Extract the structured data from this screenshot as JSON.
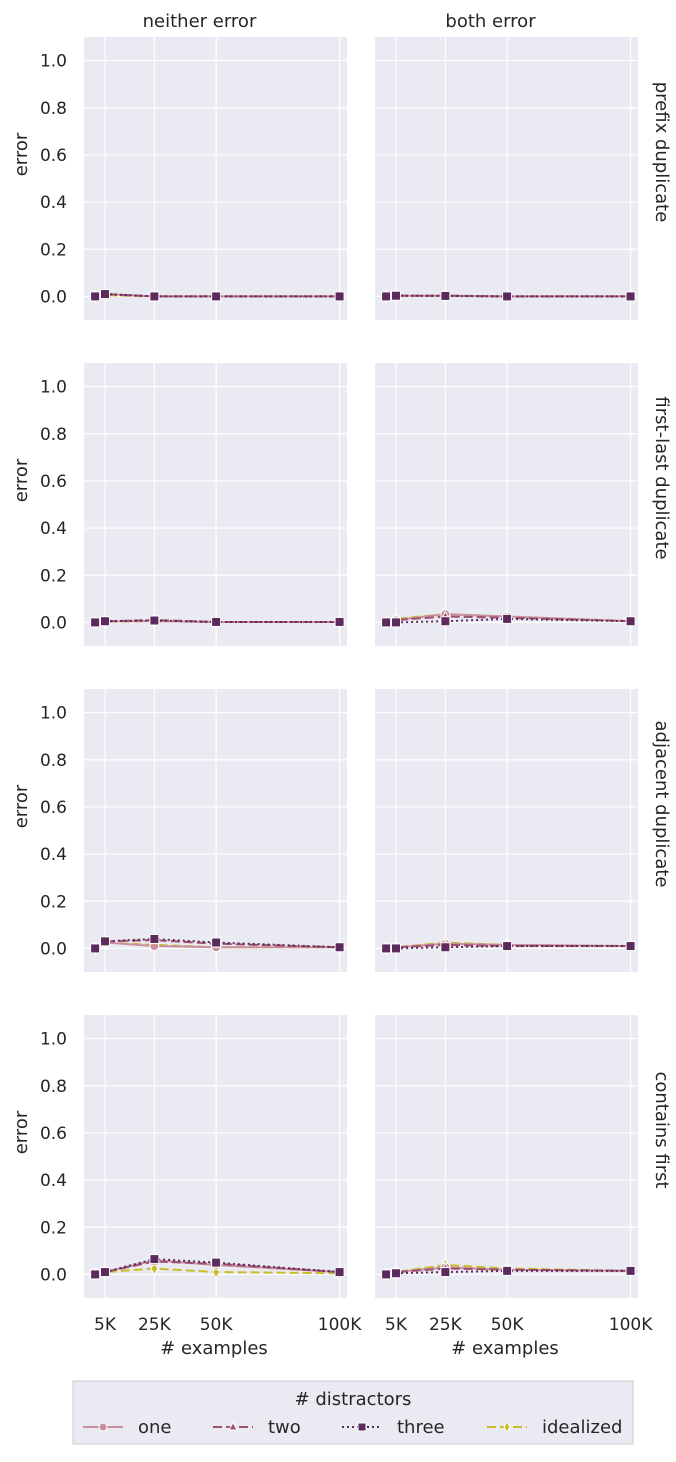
{
  "chart_data": {
    "type": "line",
    "layout": "facet-grid",
    "col_titles": [
      "neither error",
      "both error"
    ],
    "row_titles": [
      "prefix duplicate",
      "first-last duplicate",
      "adjacent duplicate",
      "contains first"
    ],
    "ylabel": "error",
    "xlabel": "# examples",
    "x": [
      1000,
      5000,
      25000,
      50000,
      100000
    ],
    "xticks": [
      5000,
      25000,
      50000,
      100000
    ],
    "xtick_labels": [
      "5K",
      "25K",
      "50K",
      "100K"
    ],
    "yticks": [
      0.0,
      0.2,
      0.4,
      0.6,
      0.8,
      1.0
    ],
    "ytick_labels": [
      "0.0",
      "0.2",
      "0.4",
      "0.6",
      "0.8",
      "1.0"
    ],
    "ylim": [
      -0.1,
      1.1
    ],
    "xlim": [
      -3500,
      103000
    ],
    "grid": true,
    "legend": {
      "title": "# distractors",
      "placement": "bottom-center",
      "entries": [
        "one",
        "two",
        "three",
        "idealized"
      ]
    },
    "series_styles": [
      {
        "name": "one",
        "color": "#c98f9f",
        "marker": "circle",
        "dash": "solid"
      },
      {
        "name": "two",
        "color": "#a0506e",
        "marker": "triangle",
        "dash": "dashed"
      },
      {
        "name": "three",
        "color": "#5c2a5c",
        "marker": "square",
        "dash": "dotted"
      },
      {
        "name": "idealized",
        "color": "#c9bd2a",
        "marker": "diamond",
        "dash": "dashed"
      }
    ],
    "panels": [
      {
        "row": 0,
        "col": 0,
        "series": [
          {
            "name": "one",
            "values": [
              0.0,
              0.01,
              0.0,
              0.0,
              0.0
            ]
          },
          {
            "name": "two",
            "values": [
              0.0,
              0.01,
              0.0,
              0.0,
              0.0
            ]
          },
          {
            "name": "three",
            "values": [
              0.0,
              0.01,
              0.0,
              0.0,
              0.0
            ]
          },
          {
            "name": "idealized",
            "values": [
              0.0,
              0.005,
              0.0,
              0.0,
              0.0
            ]
          }
        ]
      },
      {
        "row": 0,
        "col": 1,
        "series": [
          {
            "name": "one",
            "values": [
              0.0,
              0.003,
              0.003,
              0.0,
              0.0
            ]
          },
          {
            "name": "two",
            "values": [
              0.0,
              0.003,
              0.003,
              0.0,
              0.0
            ]
          },
          {
            "name": "three",
            "values": [
              0.0,
              0.003,
              0.002,
              0.0,
              0.0
            ]
          },
          {
            "name": "idealized",
            "values": [
              0.0,
              0.003,
              0.003,
              0.0,
              0.0
            ]
          }
        ]
      },
      {
        "row": 1,
        "col": 0,
        "series": [
          {
            "name": "one",
            "values": [
              0.0,
              0.005,
              0.005,
              0.002,
              0.002
            ]
          },
          {
            "name": "two",
            "values": [
              0.0,
              0.005,
              0.01,
              0.002,
              0.002
            ]
          },
          {
            "name": "three",
            "values": [
              0.0,
              0.005,
              0.008,
              0.002,
              0.002
            ]
          },
          {
            "name": "idealized",
            "values": [
              0.0,
              0.003,
              0.005,
              0.002,
              0.002
            ]
          }
        ]
      },
      {
        "row": 1,
        "col": 1,
        "series": [
          {
            "name": "one",
            "values": [
              0.0,
              0.01,
              0.035,
              0.025,
              0.005
            ]
          },
          {
            "name": "two",
            "values": [
              0.0,
              0.01,
              0.025,
              0.02,
              0.005
            ]
          },
          {
            "name": "three",
            "values": [
              0.0,
              0.0,
              0.005,
              0.015,
              0.005
            ]
          },
          {
            "name": "idealized",
            "values": [
              0.0,
              0.015,
              0.035,
              0.025,
              0.005
            ]
          }
        ]
      },
      {
        "row": 2,
        "col": 0,
        "series": [
          {
            "name": "one",
            "values": [
              0.0,
              0.025,
              0.01,
              0.005,
              0.005
            ]
          },
          {
            "name": "two",
            "values": [
              0.0,
              0.03,
              0.035,
              0.02,
              0.005
            ]
          },
          {
            "name": "three",
            "values": [
              0.0,
              0.03,
              0.04,
              0.025,
              0.005
            ]
          },
          {
            "name": "idealized",
            "values": [
              0.0,
              0.025,
              0.015,
              0.005,
              0.005
            ]
          }
        ]
      },
      {
        "row": 2,
        "col": 1,
        "series": [
          {
            "name": "one",
            "values": [
              0.0,
              0.005,
              0.02,
              0.015,
              0.01
            ]
          },
          {
            "name": "two",
            "values": [
              0.0,
              0.005,
              0.015,
              0.01,
              0.01
            ]
          },
          {
            "name": "three",
            "values": [
              0.0,
              0.0,
              0.005,
              0.01,
              0.01
            ]
          },
          {
            "name": "idealized",
            "values": [
              0.0,
              0.005,
              0.025,
              0.015,
              0.01
            ]
          }
        ]
      },
      {
        "row": 3,
        "col": 0,
        "series": [
          {
            "name": "one",
            "values": [
              0.0,
              0.01,
              0.06,
              0.04,
              0.01
            ]
          },
          {
            "name": "two",
            "values": [
              0.0,
              0.01,
              0.055,
              0.045,
              0.01
            ]
          },
          {
            "name": "three",
            "values": [
              0.0,
              0.01,
              0.065,
              0.05,
              0.01
            ]
          },
          {
            "name": "idealized",
            "values": [
              0.0,
              0.01,
              0.025,
              0.01,
              0.005
            ]
          }
        ]
      },
      {
        "row": 3,
        "col": 1,
        "series": [
          {
            "name": "one",
            "values": [
              0.0,
              0.01,
              0.03,
              0.02,
              0.015
            ]
          },
          {
            "name": "two",
            "values": [
              0.0,
              0.01,
              0.025,
              0.02,
              0.015
            ]
          },
          {
            "name": "three",
            "values": [
              0.0,
              0.005,
              0.01,
              0.015,
              0.015
            ]
          },
          {
            "name": "idealized",
            "values": [
              0.0,
              0.01,
              0.04,
              0.025,
              0.015
            ]
          }
        ]
      }
    ]
  }
}
